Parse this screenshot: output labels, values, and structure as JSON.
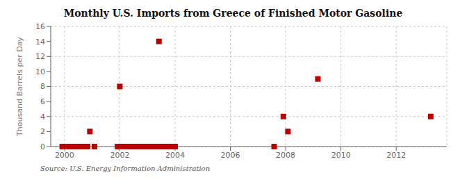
{
  "chart_data": {
    "type": "scatter",
    "title": "Monthly U.S. Imports from Greece of Finished Motor Gasoline",
    "ylabel": "Thousand Barrels per Day",
    "annotations": [
      "Source: U.S. Energy Information Administration"
    ],
    "x": [
      1999.917,
      2000.0,
      2000.083,
      2000.167,
      2000.25,
      2000.333,
      2000.417,
      2000.5,
      2000.583,
      2000.667,
      2000.75,
      2000.833,
      2000.917,
      2001.083,
      2001.917,
      2002.0,
      2002.083,
      2002.167,
      2002.25,
      2002.333,
      2002.417,
      2002.5,
      2002.583,
      2002.667,
      2002.75,
      2002.833,
      2002.917,
      2003.0,
      2003.083,
      2003.167,
      2003.25,
      2003.333,
      2003.417,
      2003.5,
      2003.583,
      2003.667,
      2003.75,
      2003.833,
      2003.917,
      2004.0,
      2007.583,
      2007.917,
      2008.083,
      2009.167,
      2013.25
    ],
    "values": [
      0,
      0,
      0,
      0,
      0,
      0,
      0,
      0,
      0,
      0,
      0,
      0,
      2,
      0,
      0,
      8,
      0,
      0,
      0,
      0,
      0,
      0,
      0,
      0,
      0,
      0,
      0,
      0,
      0,
      0,
      0,
      0,
      14,
      0,
      0,
      0,
      0,
      0,
      0,
      0,
      0,
      4,
      2,
      9,
      4
    ],
    "color": "#bb0000",
    "marker": "square",
    "xlim": [
      1999.5,
      2013.83
    ],
    "ylim": [
      0,
      16
    ],
    "xticks": [
      2000,
      2002,
      2004,
      2006,
      2008,
      2010,
      2012
    ],
    "yticks": [
      0,
      2,
      4,
      6,
      8,
      10,
      12,
      14,
      16
    ],
    "grid": true
  }
}
